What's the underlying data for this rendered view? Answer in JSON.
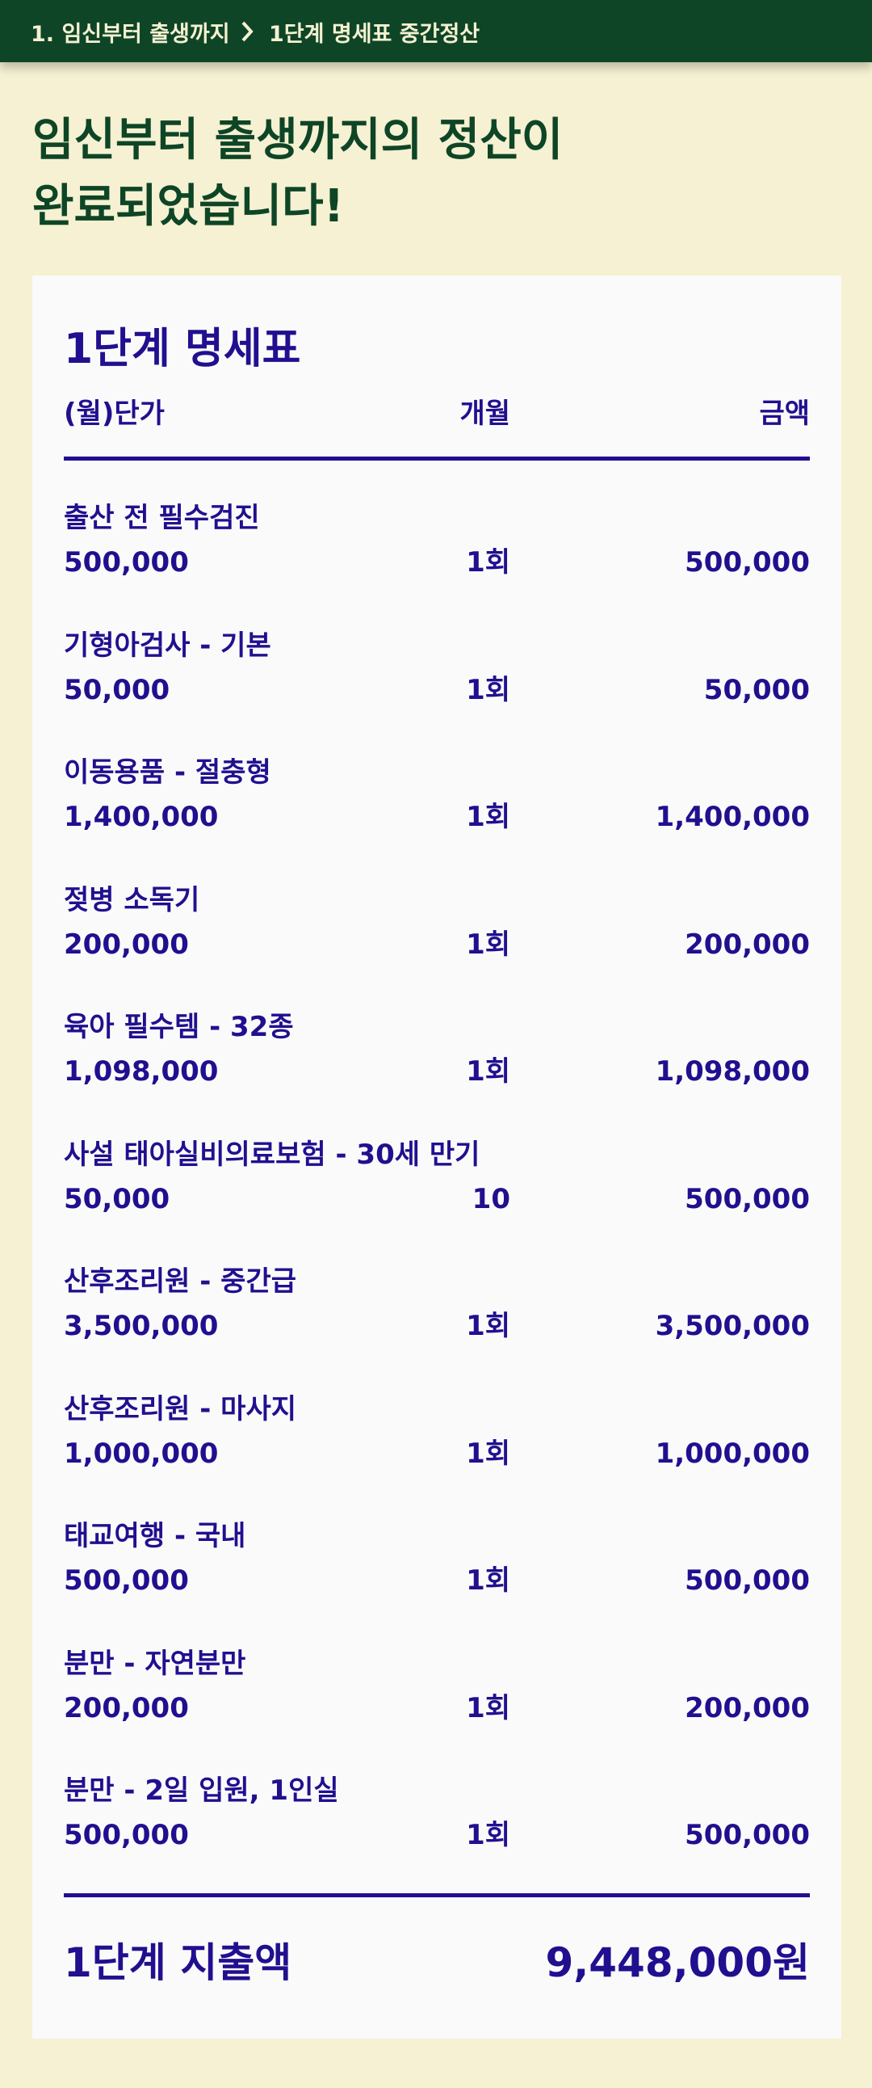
{
  "header": {
    "crumbs": [
      "1. 임신부터 출생까지",
      "1단계 명세표 중간정산"
    ]
  },
  "title": {
    "lines": [
      "임신부터 출생까지의 정산이",
      "완료되었습니다!"
    ]
  },
  "statement": {
    "title": "1단계 명세표",
    "columns": [
      "(월)단가",
      "개월",
      "금액"
    ],
    "items": [
      {
        "name": "출산 전 필수검진",
        "price": "500,000",
        "count": "1회",
        "amount": "500,000"
      },
      {
        "name": "기형아검사 - 기본",
        "price": "50,000",
        "count": "1회",
        "amount": "50,000"
      },
      {
        "name": "이동용품 - 절충형",
        "price": "1,400,000",
        "count": "1회",
        "amount": "1,400,000"
      },
      {
        "name": "젖병 소독기",
        "price": "200,000",
        "count": "1회",
        "amount": "200,000"
      },
      {
        "name": "육아 필수템 - 32종",
        "price": "1,098,000",
        "count": "1회",
        "amount": "1,098,000"
      },
      {
        "name": "사설 태아실비의료보험 - 30세 만기",
        "price": "50,000",
        "count": "10",
        "amount": "500,000"
      },
      {
        "name": "산후조리원 - 중간급",
        "price": "3,500,000",
        "count": "1회",
        "amount": "3,500,000"
      },
      {
        "name": "산후조리원 - 마사지",
        "price": "1,000,000",
        "count": "1회",
        "amount": "1,000,000"
      },
      {
        "name": "태교여행 - 국내",
        "price": "500,000",
        "count": "1회",
        "amount": "500,000"
      },
      {
        "name": "분만 - 자연분만",
        "price": "200,000",
        "count": "1회",
        "amount": "200,000"
      },
      {
        "name": "분만 - 2일 입원, 1인실",
        "price": "500,000",
        "count": "1회",
        "amount": "500,000"
      }
    ],
    "total_label": "1단계 지출액",
    "total": "9,448,000원"
  }
}
